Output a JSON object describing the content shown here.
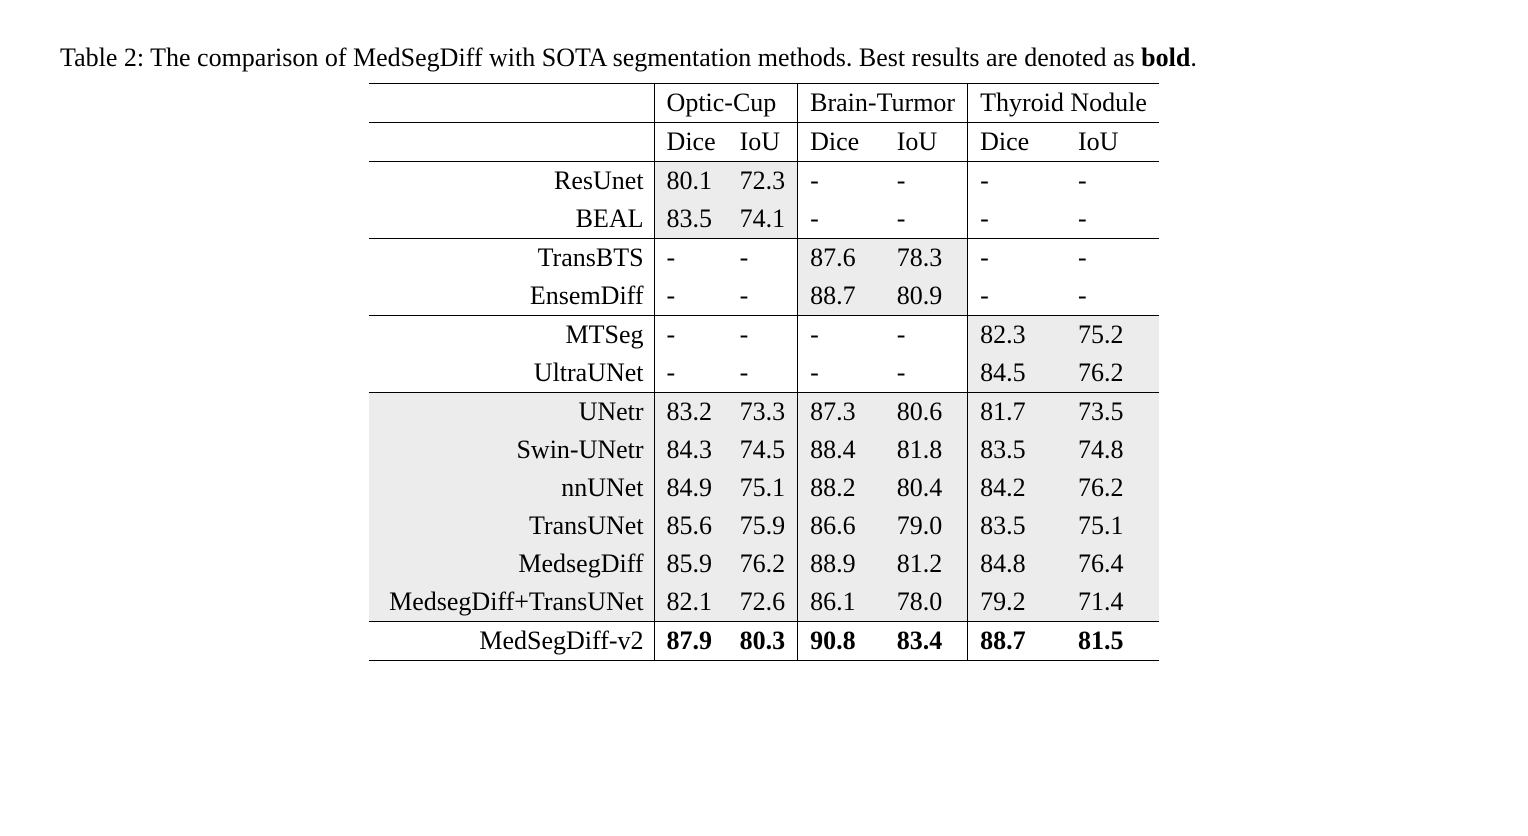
{
  "caption": {
    "prefix": "Table 2: The comparison of MedSegDiff with SOTA segmentation methods. Best results are denoted as ",
    "bold_word": "bold",
    "suffix": "."
  },
  "headers": {
    "group1": "Optic-Cup",
    "group2": "Brain-Turmor",
    "group3": "Thyroid Nodule",
    "dice": "Dice",
    "iou": "IoU"
  },
  "rows": [
    {
      "method": "ResUnet",
      "oc_d": "80.1",
      "oc_i": "72.3",
      "bt_d": "-",
      "bt_i": "-",
      "tn_d": "-",
      "tn_i": "-"
    },
    {
      "method": "BEAL",
      "oc_d": "83.5",
      "oc_i": "74.1",
      "bt_d": "-",
      "bt_i": "-",
      "tn_d": "-",
      "tn_i": "-"
    },
    {
      "method": "TransBTS",
      "oc_d": "-",
      "oc_i": "-",
      "bt_d": "87.6",
      "bt_i": "78.3",
      "tn_d": "-",
      "tn_i": "-"
    },
    {
      "method": "EnsemDiff",
      "oc_d": "-",
      "oc_i": "-",
      "bt_d": "88.7",
      "bt_i": "80.9",
      "tn_d": "-",
      "tn_i": "-"
    },
    {
      "method": "MTSeg",
      "oc_d": "-",
      "oc_i": "-",
      "bt_d": "-",
      "bt_i": "-",
      "tn_d": "82.3",
      "tn_i": "75.2"
    },
    {
      "method": "UltraUNet",
      "oc_d": "-",
      "oc_i": "-",
      "bt_d": "-",
      "bt_i": "-",
      "tn_d": "84.5",
      "tn_i": "76.2"
    },
    {
      "method": "UNetr",
      "oc_d": "83.2",
      "oc_i": "73.3",
      "bt_d": "87.3",
      "bt_i": "80.6",
      "tn_d": "81.7",
      "tn_i": "73.5"
    },
    {
      "method": "Swin-UNetr",
      "oc_d": "84.3",
      "oc_i": "74.5",
      "bt_d": "88.4",
      "bt_i": "81.8",
      "tn_d": "83.5",
      "tn_i": "74.8"
    },
    {
      "method": "nnUNet",
      "oc_d": "84.9",
      "oc_i": "75.1",
      "bt_d": "88.2",
      "bt_i": "80.4",
      "tn_d": "84.2",
      "tn_i": "76.2"
    },
    {
      "method": "TransUNet",
      "oc_d": "85.6",
      "oc_i": "75.9",
      "bt_d": "86.6",
      "bt_i": "79.0",
      "tn_d": "83.5",
      "tn_i": "75.1"
    },
    {
      "method": "MedsegDiff",
      "oc_d": "85.9",
      "oc_i": "76.2",
      "bt_d": "88.9",
      "bt_i": "81.2",
      "tn_d": "84.8",
      "tn_i": "76.4"
    },
    {
      "method": "MedsegDiff+TransUNet",
      "oc_d": "82.1",
      "oc_i": "72.6",
      "bt_d": "86.1",
      "bt_i": "78.0",
      "tn_d": "79.2",
      "tn_i": "71.4"
    },
    {
      "method": "MedSegDiff-v2",
      "oc_d": "87.9",
      "oc_i": "80.3",
      "bt_d": "90.8",
      "bt_i": "83.4",
      "tn_d": "88.7",
      "tn_i": "81.5",
      "bold": true
    }
  ],
  "shading": {
    "row0": [
      "oc_d",
      "oc_i"
    ],
    "row1": [
      "oc_d",
      "oc_i"
    ],
    "row2": [
      "bt_d",
      "bt_i"
    ],
    "row3": [
      "bt_d",
      "bt_i"
    ],
    "row4": [
      "tn_d",
      "tn_i"
    ],
    "row5": [
      "tn_d",
      "tn_i"
    ],
    "row6": "all",
    "row7": "all",
    "row8": "all",
    "row9": "all",
    "row10": "all",
    "row11": "all",
    "row12": "none"
  },
  "rules": {
    "after_header": true,
    "after_subheader": true,
    "after_rows": [
      1,
      3,
      5,
      11,
      12
    ]
  },
  "colors": {
    "shade": "#ececec",
    "text": "#000000",
    "background": "#ffffff",
    "rule": "#000000"
  }
}
